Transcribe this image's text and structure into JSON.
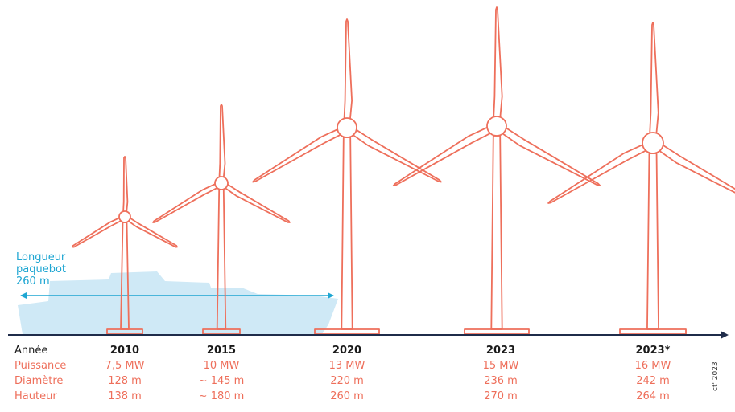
{
  "ship": {
    "label_lines": [
      "Longueur",
      "paquebot",
      "260 m"
    ]
  },
  "row_labels": {
    "year": "Année",
    "power": "Puissance",
    "diameter": "Diamètre",
    "height": "Hauteur"
  },
  "turbines": [
    {
      "year": "2010",
      "power": "7,5 MW",
      "diameter": "128 m",
      "height": "138 m"
    },
    {
      "year": "2015",
      "power": "10 MW",
      "diameter": "~ 145 m",
      "height": "~ 180 m"
    },
    {
      "year": "2020",
      "power": "13 MW",
      "diameter": "220 m",
      "height": "260 m"
    },
    {
      "year": "2023",
      "power": "15 MW",
      "diameter": "236 m",
      "height": "270 m"
    },
    {
      "year": "2023*",
      "power": "16 MW",
      "diameter": "242 m",
      "height": "264 m"
    }
  ],
  "credit": "ct' 2023",
  "colors": {
    "turbine": "#ee6f5b",
    "ship": "#cfe9f6",
    "ship_arrow": "#1ea6d2",
    "axis": "#1f2c4a"
  }
}
